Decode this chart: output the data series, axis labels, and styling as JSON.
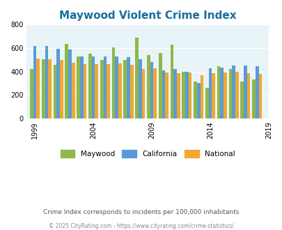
{
  "title": "Maywood Violent Crime Index",
  "years": [
    1999,
    2000,
    2001,
    2002,
    2003,
    2004,
    2005,
    2006,
    2007,
    2008,
    2009,
    2010,
    2011,
    2012,
    2013,
    2014,
    2015,
    2016,
    2017,
    2018
  ],
  "maywood": [
    420,
    505,
    455,
    635,
    530,
    550,
    500,
    605,
    500,
    690,
    540,
    560,
    630,
    400,
    315,
    260,
    445,
    420,
    315,
    330
  ],
  "california": [
    620,
    615,
    595,
    590,
    530,
    530,
    530,
    530,
    520,
    505,
    480,
    410,
    420,
    395,
    305,
    430,
    435,
    450,
    450,
    445
  ],
  "national": [
    510,
    505,
    500,
    475,
    465,
    465,
    465,
    470,
    455,
    420,
    425,
    390,
    385,
    390,
    370,
    385,
    390,
    395,
    385,
    380
  ],
  "color_maywood": "#8db84a",
  "color_california": "#5b9bd5",
  "color_national": "#f0a830",
  "bg_color": "#e8f4f8",
  "ylim": [
    0,
    800
  ],
  "yticks": [
    0,
    200,
    400,
    600,
    800
  ],
  "xtick_years": [
    1999,
    2004,
    2009,
    2014,
    2019
  ],
  "subtitle": "Crime Index corresponds to incidents per 100,000 inhabitants",
  "footer": "© 2025 CityRating.com - https://www.cityrating.com/crime-statistics/",
  "title_color": "#1a6ea0",
  "subtitle_color": "#555555",
  "footer_color": "#888888"
}
